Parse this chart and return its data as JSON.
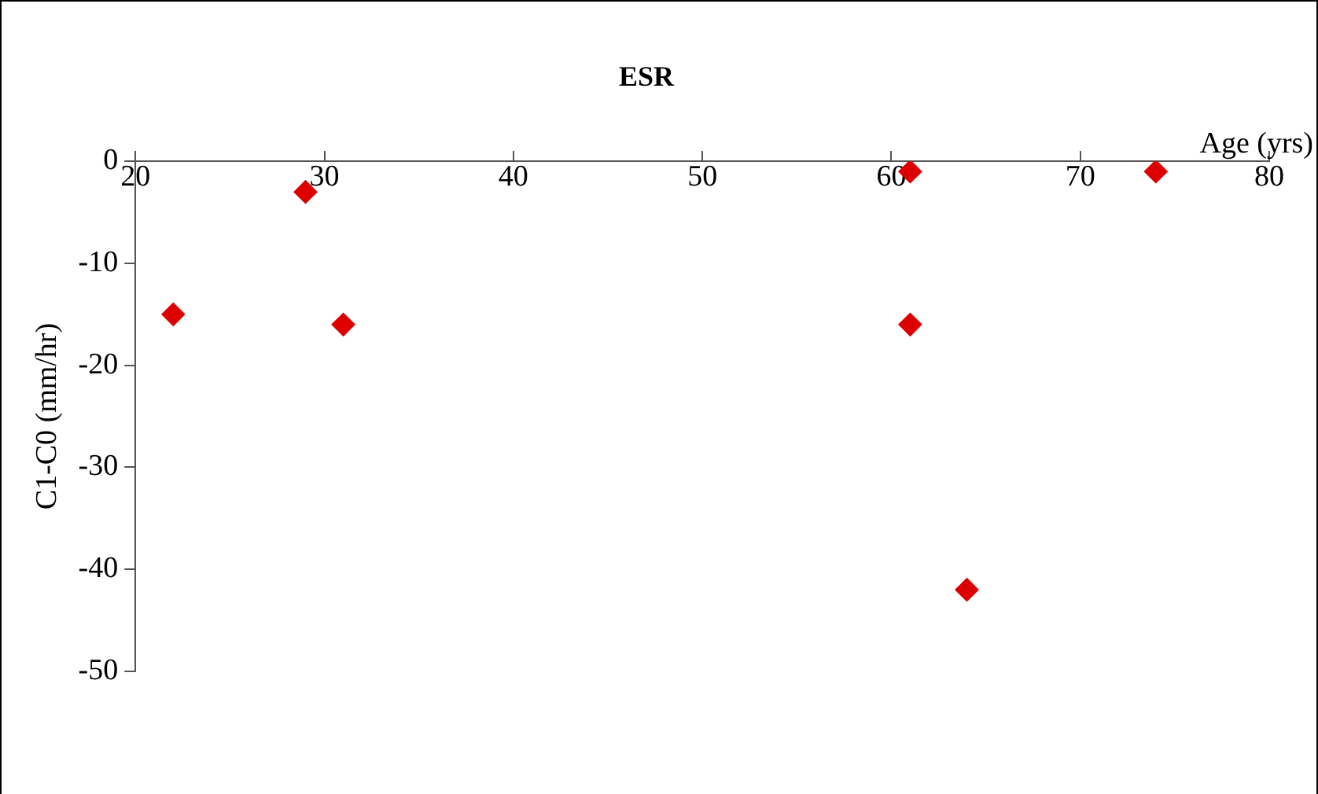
{
  "chart_data": {
    "type": "scatter",
    "title": "ESR",
    "xlabel": "Age (yrs)",
    "ylabel": "C1-C0 (mm/hr)",
    "x": [
      22,
      29,
      31,
      61,
      61,
      64,
      74
    ],
    "series": [
      {
        "color": "#dd0000",
        "values": [
          -15,
          -3,
          -16,
          -1,
          -16,
          -42,
          -1
        ]
      }
    ],
    "xlim": [
      20,
      80
    ],
    "xticks": [
      20,
      30,
      40,
      50,
      60,
      70,
      80
    ],
    "ylim": [
      -50,
      0
    ],
    "yticks": [
      -50,
      -40,
      -30,
      -20,
      -10,
      0
    ],
    "grid": false,
    "legend": false,
    "marker": "diamond"
  }
}
